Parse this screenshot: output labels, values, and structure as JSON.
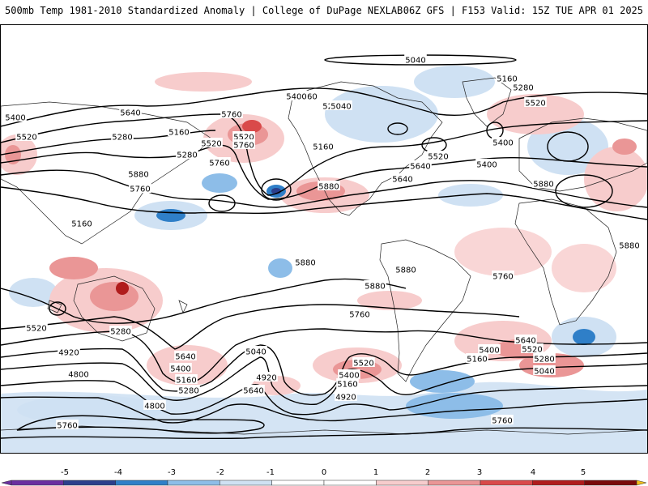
{
  "header": {
    "left_title": "500mb Temp 1981-2010 Standardized Anomaly | College of DuPage NEXLAB",
    "right_title": "06Z GFS | F153 Valid: 15Z TUE APR 01 2025"
  },
  "contour_labels": [
    "5040",
    "5160",
    "5280",
    "5160",
    "5520",
    "5400",
    "5520",
    "5640",
    "5760",
    "5400",
    "5280",
    "5520",
    "5760",
    "5040",
    "5160",
    "5280",
    "5160",
    "5400",
    "5400",
    "5520",
    "5760",
    "5640",
    "5880",
    "5880",
    "5160",
    "5280",
    "5520",
    "5640",
    "5400",
    "5760",
    "5880",
    "5880",
    "5880",
    "5880",
    "5880",
    "5760",
    "5760",
    "5520",
    "5280",
    "4920",
    "4800",
    "4800",
    "5760",
    "5640",
    "5400",
    "5160",
    "5280",
    "5040",
    "4920",
    "5640",
    "5520",
    "5400",
    "5160",
    "4920",
    "5760",
    "5640",
    "5520",
    "5400",
    "5280",
    "5160",
    "5040"
  ],
  "colorbar": {
    "ticks": [
      "-5",
      "-4",
      "-3",
      "-2",
      "-1",
      "0",
      "1",
      "2",
      "3",
      "4",
      "5"
    ],
    "colors": {
      "neg5": "#6a2fa0",
      "neg4": "#2b3f8c",
      "neg3": "#2f7fc8",
      "neg2": "#8dbde8",
      "neg1": "#cfe1f3",
      "zero": "#ffffff",
      "pos1": "#f7cccc",
      "pos2": "#ea9696",
      "pos3": "#d94a4a",
      "pos4": "#b01c1c",
      "pos5": "#7a0a0a",
      "top": "#f2c01a"
    }
  }
}
